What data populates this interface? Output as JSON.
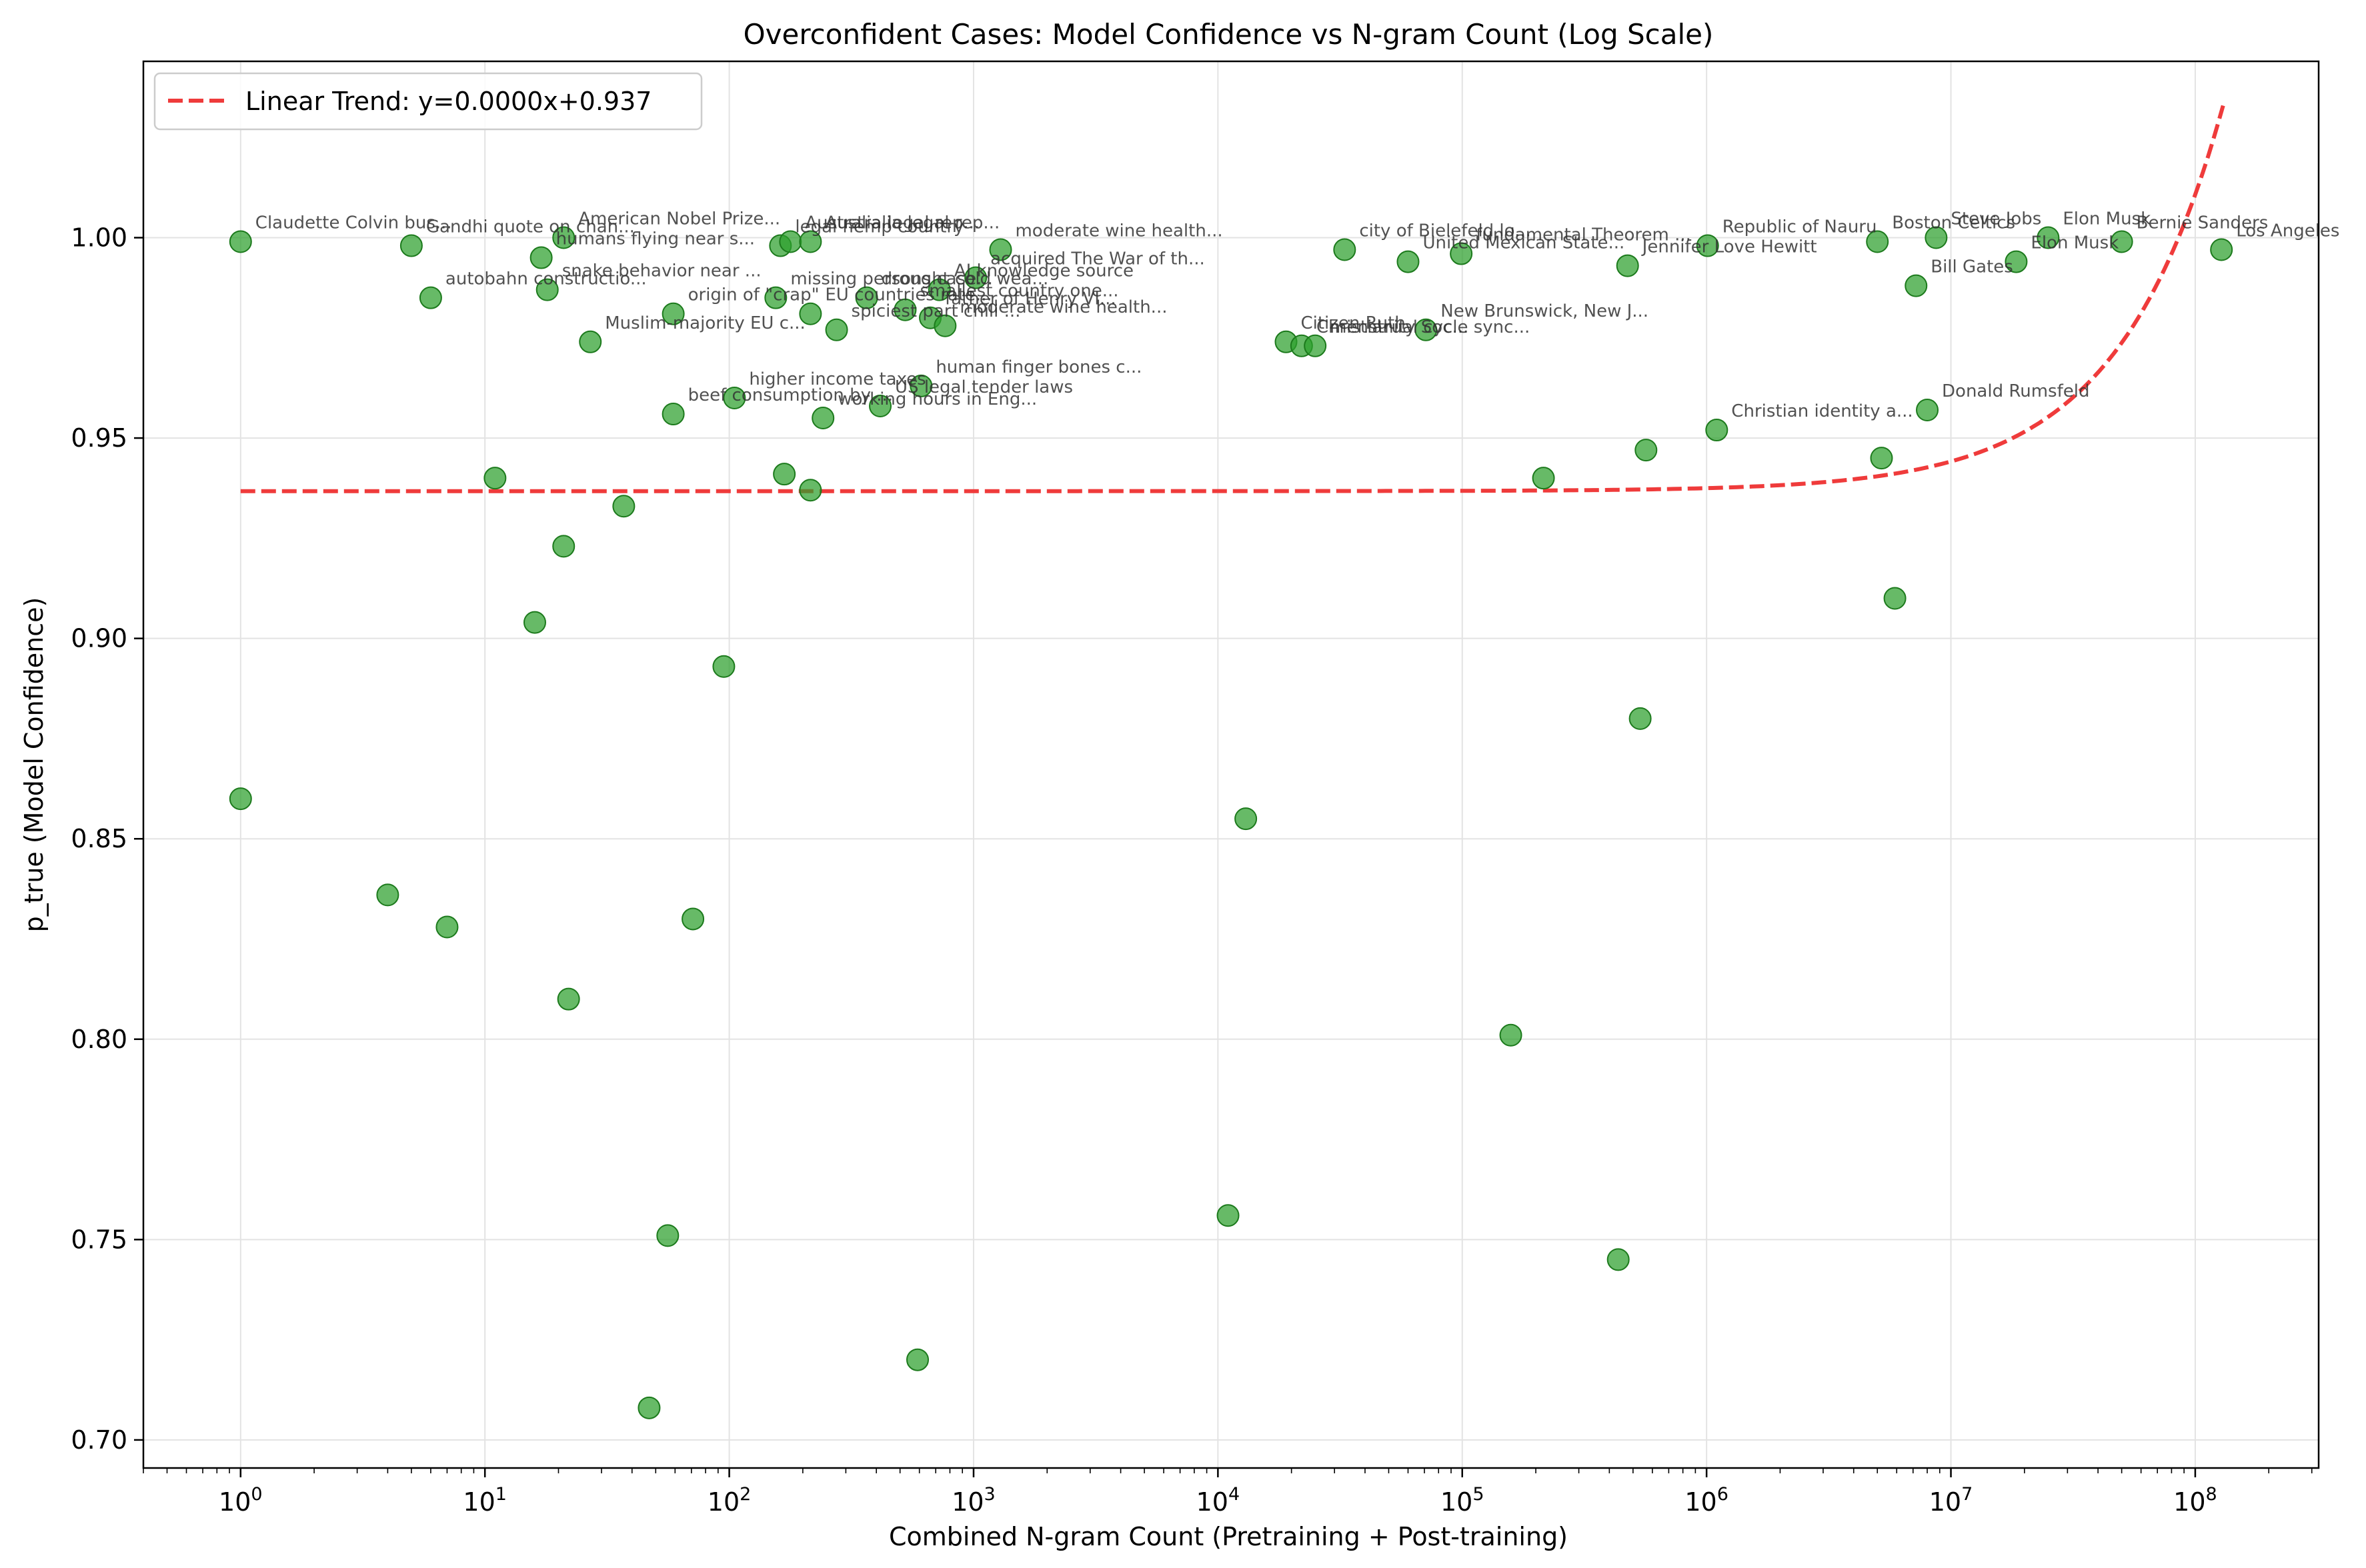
{
  "chart_data": {
    "type": "scatter",
    "title": "Overconfident Cases: Model Confidence vs N-gram Count (Log Scale)",
    "xlabel": "Combined N-gram Count (Pretraining + Post-training)",
    "ylabel": "p_true (Model Confidence)",
    "x_scale": "log",
    "xlim": [
      0.4,
      320000000
    ],
    "ylim": [
      0.693,
      1.044
    ],
    "grid": true,
    "legend_position": "top-left",
    "colors": {
      "points": "#2ca02c",
      "trend": "#ef3b3b"
    },
    "x_ticks": [
      {
        "value": 1,
        "base": "10",
        "exp": "0"
      },
      {
        "value": 10,
        "base": "10",
        "exp": "1"
      },
      {
        "value": 100,
        "base": "10",
        "exp": "2"
      },
      {
        "value": 1000,
        "base": "10",
        "exp": "3"
      },
      {
        "value": 10000,
        "base": "10",
        "exp": "4"
      },
      {
        "value": 100000,
        "base": "10",
        "exp": "5"
      },
      {
        "value": 1000000,
        "base": "10",
        "exp": "6"
      },
      {
        "value": 10000000,
        "base": "10",
        "exp": "7"
      },
      {
        "value": 100000000,
        "base": "10",
        "exp": "8"
      }
    ],
    "y_ticks": [
      {
        "value": 0.7,
        "label": "0.70"
      },
      {
        "value": 0.75,
        "label": "0.75"
      },
      {
        "value": 0.8,
        "label": "0.80"
      },
      {
        "value": 0.85,
        "label": "0.85"
      },
      {
        "value": 0.9,
        "label": "0.90"
      },
      {
        "value": 0.95,
        "label": "0.95"
      },
      {
        "value": 1.0,
        "label": "1.00"
      }
    ],
    "trend": {
      "label": "Linear Trend: y=0.0000x+0.937",
      "intercept": 0.93676,
      "slope": 7.4e-10,
      "x_range": [
        1,
        130000000
      ]
    },
    "points": [
      {
        "x": 1,
        "y": 0.999,
        "label": "Claudette Colvin bus..."
      },
      {
        "x": 1,
        "y": 0.86
      },
      {
        "x": 4,
        "y": 0.836
      },
      {
        "x": 5,
        "y": 0.998,
        "label": "Gandhi quote on chan..."
      },
      {
        "x": 6,
        "y": 0.985,
        "label": "autobahn constructio..."
      },
      {
        "x": 7,
        "y": 0.828
      },
      {
        "x": 11,
        "y": 0.94
      },
      {
        "x": 16,
        "y": 0.904
      },
      {
        "x": 17,
        "y": 0.995,
        "label": "humans flying near s..."
      },
      {
        "x": 18,
        "y": 0.987,
        "label": "snake behavior near ..."
      },
      {
        "x": 21,
        "y": 0.923
      },
      {
        "x": 21,
        "y": 1.0,
        "label": "American Nobel Prize..."
      },
      {
        "x": 22,
        "y": 0.81
      },
      {
        "x": 27,
        "y": 0.974,
        "label": "Muslim-majority EU c..."
      },
      {
        "x": 37,
        "y": 0.933
      },
      {
        "x": 47,
        "y": 0.708
      },
      {
        "x": 56,
        "y": 0.751
      },
      {
        "x": 59,
        "y": 0.956,
        "label": "beef consumption by ..."
      },
      {
        "x": 59,
        "y": 0.981,
        "label": "origin of \"crap\""
      },
      {
        "x": 71,
        "y": 0.83
      },
      {
        "x": 95,
        "y": 0.893
      },
      {
        "x": 105,
        "y": 0.96,
        "label": "higher income taxes"
      },
      {
        "x": 155,
        "y": 0.985,
        "label": "missing persons case..."
      },
      {
        "x": 162,
        "y": 0.998,
        "label": "legal hemp country"
      },
      {
        "x": 168,
        "y": 0.941
      },
      {
        "x": 178,
        "y": 0.999,
        "label": "Australia legal rep..."
      },
      {
        "x": 215,
        "y": 0.937
      },
      {
        "x": 215,
        "y": 0.981,
        "label": "EU countries rate..."
      },
      {
        "x": 215,
        "y": 0.999,
        "label": "Australia legal rep..."
      },
      {
        "x": 242,
        "y": 0.955,
        "label": "working hours in Eng..."
      },
      {
        "x": 275,
        "y": 0.977,
        "label": "spiciest part chili ..."
      },
      {
        "x": 365,
        "y": 0.985,
        "label": "drought cold wea..."
      },
      {
        "x": 415,
        "y": 0.958,
        "label": "US legal tender laws"
      },
      {
        "x": 525,
        "y": 0.982,
        "label": "smallest country one..."
      },
      {
        "x": 590,
        "y": 0.72
      },
      {
        "x": 610,
        "y": 0.963,
        "label": "human finger bones c..."
      },
      {
        "x": 665,
        "y": 0.98,
        "label": "father of Henry VI..."
      },
      {
        "x": 725,
        "y": 0.987,
        "label": "AI knowledge source"
      },
      {
        "x": 765,
        "y": 0.978,
        "label": "moderate wine health..."
      },
      {
        "x": 1020,
        "y": 0.99,
        "label": "acquired The War of th..."
      },
      {
        "x": 1290,
        "y": 0.997,
        "label": "moderate wine health..."
      },
      {
        "x": 11000,
        "y": 0.756
      },
      {
        "x": 13000,
        "y": 0.855
      },
      {
        "x": 19000,
        "y": 0.974,
        "label": "Citizen Ruth"
      },
      {
        "x": 22000,
        "y": 0.973,
        "label": "Christianity Soc..."
      },
      {
        "x": 25000,
        "y": 0.973,
        "label": "menstrual cycle sync..."
      },
      {
        "x": 33000,
        "y": 0.997,
        "label": "city of Bielefeld lo..."
      },
      {
        "x": 60000,
        "y": 0.994,
        "label": "United Mexican State..."
      },
      {
        "x": 71000,
        "y": 0.977,
        "label": "New Brunswick, New J..."
      },
      {
        "x": 99000,
        "y": 0.996,
        "label": "fundamental Theorem ..."
      },
      {
        "x": 158000,
        "y": 0.801
      },
      {
        "x": 215000,
        "y": 0.94
      },
      {
        "x": 435000,
        "y": 0.745
      },
      {
        "x": 475000,
        "y": 0.993,
        "label": "Jennifer Love Hewitt"
      },
      {
        "x": 535000,
        "y": 0.88
      },
      {
        "x": 565000,
        "y": 0.947
      },
      {
        "x": 1010000,
        "y": 0.998,
        "label": "Republic of Nauru"
      },
      {
        "x": 1100000,
        "y": 0.952,
        "label": "Christian identity a..."
      },
      {
        "x": 5000000,
        "y": 0.999,
        "label": "Boston Celtics"
      },
      {
        "x": 5200000,
        "y": 0.945
      },
      {
        "x": 5900000,
        "y": 0.91
      },
      {
        "x": 7200000,
        "y": 0.988,
        "label": "Bill Gates"
      },
      {
        "x": 8000000,
        "y": 0.957,
        "label": "Donald Rumsfeld"
      },
      {
        "x": 8700000,
        "y": 1.0,
        "label": "Steve Jobs"
      },
      {
        "x": 18500000,
        "y": 0.994,
        "label": "Elon Musk"
      },
      {
        "x": 25000000,
        "y": 1.0,
        "label": "Elon Musk"
      },
      {
        "x": 50000000,
        "y": 0.999,
        "label": "Bernie Sanders"
      },
      {
        "x": 128000000,
        "y": 0.997,
        "label": "Los Angeles"
      }
    ]
  }
}
